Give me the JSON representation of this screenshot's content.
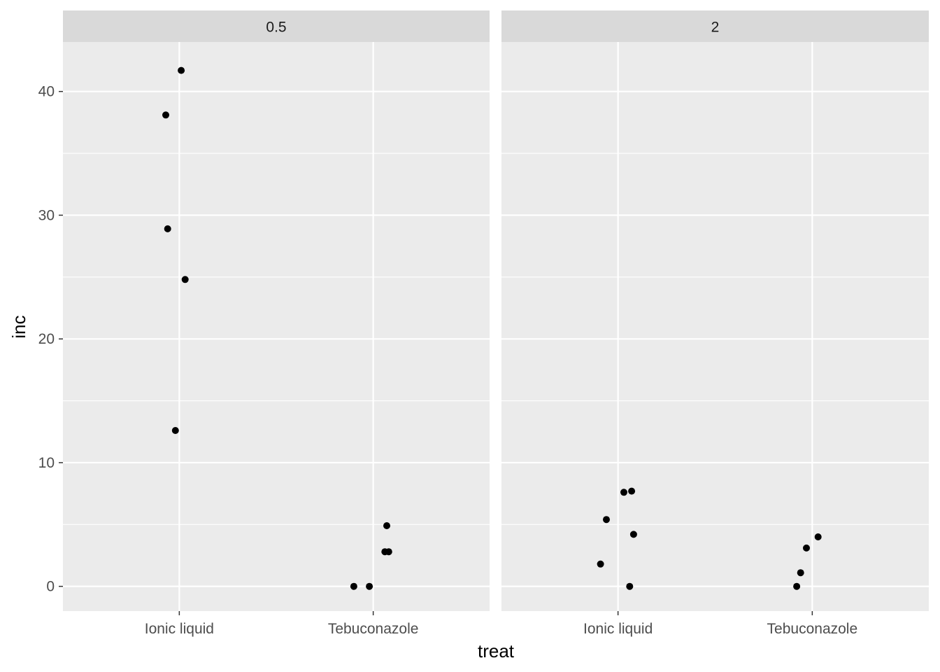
{
  "chart_data": {
    "type": "scatter",
    "xlabel": "treat",
    "ylabel": "inc",
    "categories": [
      "Ionic liquid",
      "Tebuconazole"
    ],
    "ylim": [
      -2,
      44
    ],
    "yticks": [
      "0",
      "10",
      "20",
      "30",
      "40"
    ],
    "grid": true,
    "colors": {
      "panel_bg": "#ebebeb",
      "strip_bg": "#d9d9d9",
      "grid": "#ffffff",
      "point": "#000000",
      "tick_text": "#4d4d4d",
      "title_text": "#000000"
    },
    "facets": [
      {
        "label": "0.5",
        "points": [
          {
            "treat": "Ionic liquid",
            "jitter": -0.07,
            "inc": 38.1
          },
          {
            "treat": "Ionic liquid",
            "jitter": 0.01,
            "inc": 41.7
          },
          {
            "treat": "Ionic liquid",
            "jitter": -0.06,
            "inc": 28.9
          },
          {
            "treat": "Ionic liquid",
            "jitter": 0.03,
            "inc": 24.8
          },
          {
            "treat": "Ionic liquid",
            "jitter": -0.02,
            "inc": 12.6
          },
          {
            "treat": "Tebuconazole",
            "jitter": -0.1,
            "inc": 0.0
          },
          {
            "treat": "Tebuconazole",
            "jitter": -0.02,
            "inc": 0.0
          },
          {
            "treat": "Tebuconazole",
            "jitter": 0.06,
            "inc": 2.8
          },
          {
            "treat": "Tebuconazole",
            "jitter": 0.08,
            "inc": 2.8
          },
          {
            "treat": "Tebuconazole",
            "jitter": 0.07,
            "inc": 4.9
          }
        ]
      },
      {
        "label": "2",
        "points": [
          {
            "treat": "Ionic liquid",
            "jitter": -0.09,
            "inc": 1.8
          },
          {
            "treat": "Ionic liquid",
            "jitter": -0.06,
            "inc": 5.4
          },
          {
            "treat": "Ionic liquid",
            "jitter": 0.03,
            "inc": 7.6
          },
          {
            "treat": "Ionic liquid",
            "jitter": 0.07,
            "inc": 7.7
          },
          {
            "treat": "Ionic liquid",
            "jitter": 0.08,
            "inc": 4.2
          },
          {
            "treat": "Ionic liquid",
            "jitter": 0.06,
            "inc": 0.0
          },
          {
            "treat": "Tebuconazole",
            "jitter": -0.08,
            "inc": 0.0
          },
          {
            "treat": "Tebuconazole",
            "jitter": -0.06,
            "inc": 1.1
          },
          {
            "treat": "Tebuconazole",
            "jitter": -0.03,
            "inc": 3.1
          },
          {
            "treat": "Tebuconazole",
            "jitter": 0.03,
            "inc": 4.0
          }
        ]
      }
    ]
  }
}
